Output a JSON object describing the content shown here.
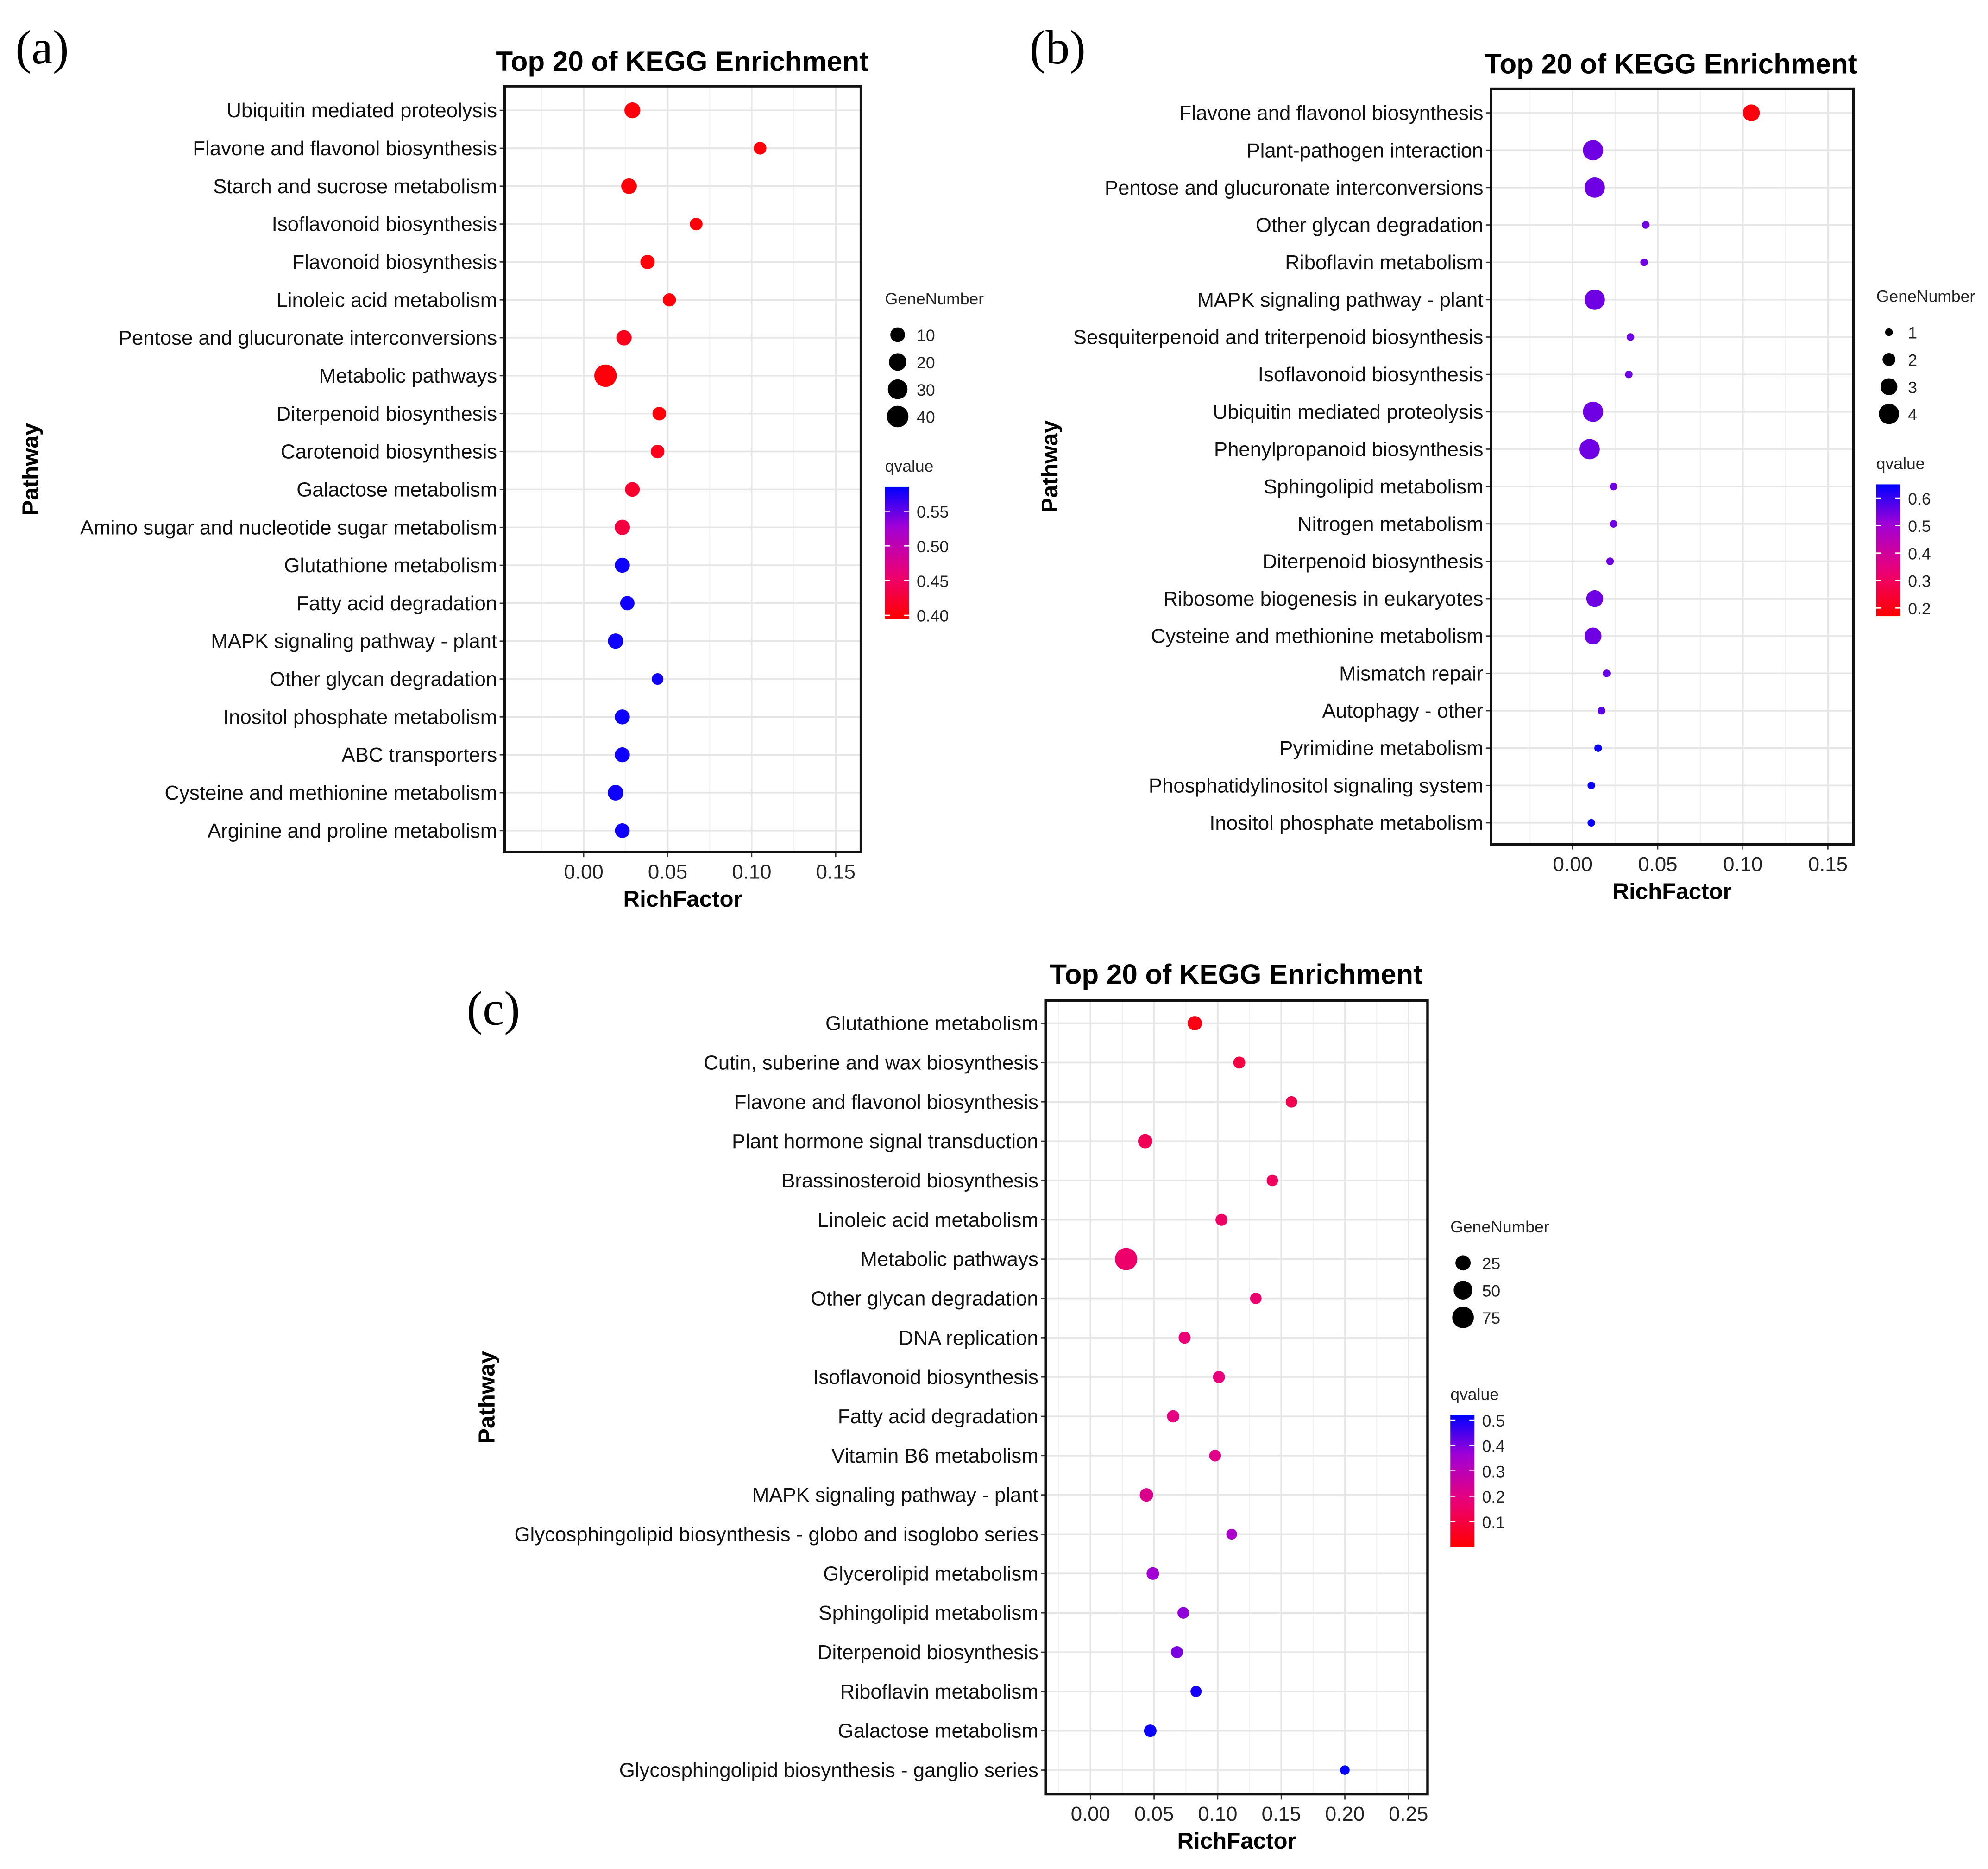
{
  "chart_data": [
    {
      "panel_label": "(a)",
      "type": "scatter",
      "title": "Top 20 of KEGG Enrichment",
      "xlabel": "RichFactor",
      "ylabel": "Pathway",
      "xlim": [
        -0.047,
        0.165
      ],
      "xticks": [
        "0.00",
        "0.05",
        "0.10",
        "0.15"
      ],
      "xtick_values": [
        0,
        0.05,
        0.1,
        0.15
      ],
      "size_legend": {
        "title": "GeneNumber",
        "values": [
          10,
          20,
          30,
          40
        ]
      },
      "color_legend": {
        "title": "qvalue",
        "ticks": [
          "0.55",
          "0.50",
          "0.45",
          "0.40"
        ],
        "tick_values": [
          0.55,
          0.5,
          0.45,
          0.4
        ],
        "range": [
          0.395,
          0.585
        ]
      },
      "pathways": [
        "Ubiquitin mediated proteolysis",
        "Flavone and flavonol biosynthesis",
        "Starch and sucrose metabolism",
        "Isoflavonoid biosynthesis",
        "Flavonoid biosynthesis",
        "Linoleic acid metabolism",
        "Pentose and glucuronate interconversions",
        "Metabolic pathways",
        "Diterpenoid biosynthesis",
        "Carotenoid biosynthesis",
        "Galactose metabolism",
        "Amino sugar and nucleotide sugar metabolism",
        "Glutathione metabolism",
        "Fatty acid degradation",
        "MAPK signaling pathway - plant",
        "Other glycan degradation",
        "Inositol phosphate metabolism",
        "ABC transporters",
        "Cysteine and methionine metabolism",
        "Arginine and proline metabolism"
      ],
      "rich_factor": [
        0.029,
        0.105,
        0.027,
        0.067,
        0.038,
        0.051,
        0.024,
        0.013,
        0.045,
        0.044,
        0.029,
        0.023,
        0.023,
        0.026,
        0.019,
        0.044,
        0.023,
        0.023,
        0.019,
        0.023
      ],
      "gene_number": [
        14,
        5,
        13,
        5,
        9,
        6,
        12,
        45,
        7,
        7,
        10,
        12,
        11,
        9,
        12,
        3,
        11,
        11,
        13,
        10
      ],
      "qvalue": [
        0.4,
        0.4,
        0.4,
        0.4,
        0.4,
        0.4,
        0.41,
        0.4,
        0.4,
        0.41,
        0.42,
        0.43,
        0.58,
        0.58,
        0.58,
        0.58,
        0.58,
        0.58,
        0.58,
        0.58
      ]
    },
    {
      "panel_label": "(b)",
      "type": "scatter",
      "title": "Top 20 of KEGG Enrichment",
      "xlabel": "RichFactor",
      "ylabel": "Pathway",
      "xlim": [
        -0.048,
        0.165
      ],
      "xticks": [
        "0.00",
        "0.05",
        "0.10",
        "0.15"
      ],
      "xtick_values": [
        0,
        0.05,
        0.1,
        0.15
      ],
      "size_legend": {
        "title": "GeneNumber",
        "values": [
          1,
          2,
          3,
          4
        ]
      },
      "color_legend": {
        "title": "qvalue",
        "ticks": [
          "0.6",
          "0.5",
          "0.4",
          "0.3",
          "0.2"
        ],
        "tick_values": [
          0.6,
          0.5,
          0.4,
          0.3,
          0.2
        ],
        "range": [
          0.17,
          0.65
        ]
      },
      "pathways": [
        "Flavone and flavonol biosynthesis",
        "Plant-pathogen interaction",
        "Pentose and glucuronate interconversions",
        "Other glycan degradation",
        "Riboflavin metabolism",
        "MAPK signaling pathway - plant",
        "Sesquiterpenoid and triterpenoid biosynthesis",
        "Isoflavonoid biosynthesis",
        "Ubiquitin mediated proteolysis",
        "Phenylpropanoid biosynthesis",
        "Sphingolipid metabolism",
        "Nitrogen metabolism",
        "Diterpenoid biosynthesis",
        "Ribosome biogenesis in eukaryotes",
        "Cysteine and methionine metabolism",
        "Mismatch repair",
        "Autophagy - other",
        "Pyrimidine metabolism",
        "Phosphatidylinositol signaling system",
        "Inositol phosphate metabolism"
      ],
      "rich_factor": [
        0.105,
        0.012,
        0.013,
        0.043,
        0.042,
        0.013,
        0.034,
        0.033,
        0.012,
        0.01,
        0.024,
        0.024,
        0.022,
        0.013,
        0.012,
        0.02,
        0.017,
        0.015,
        0.011,
        0.011
      ],
      "gene_number": [
        3,
        4,
        4,
        1,
        1,
        4,
        1,
        1,
        4,
        4,
        1,
        1,
        1,
        3,
        3,
        1,
        1,
        1,
        1,
        1
      ],
      "qvalue": [
        0.19,
        0.55,
        0.55,
        0.55,
        0.55,
        0.55,
        0.55,
        0.55,
        0.55,
        0.55,
        0.55,
        0.55,
        0.55,
        0.55,
        0.55,
        0.56,
        0.57,
        0.64,
        0.64,
        0.64
      ]
    },
    {
      "panel_label": "(c)",
      "type": "scatter",
      "title": "Top 20 of KEGG Enrichment",
      "xlabel": "RichFactor",
      "ylabel": "Pathway",
      "xlim": [
        -0.035,
        0.265
      ],
      "xticks": [
        "0.00",
        "0.05",
        "0.10",
        "0.15",
        "0.20",
        "0.25"
      ],
      "xtick_values": [
        0,
        0.05,
        0.1,
        0.15,
        0.2,
        0.25
      ],
      "size_legend": {
        "title": "GeneNumber",
        "values": [
          25,
          50,
          75
        ]
      },
      "color_legend": {
        "title": "qvalue",
        "ticks": [
          "0.5",
          "0.4",
          "0.3",
          "0.2",
          "0.1"
        ],
        "tick_values": [
          0.5,
          0.4,
          0.3,
          0.2,
          0.1
        ],
        "range": [
          0.0,
          0.52
        ]
      },
      "pathways": [
        "Glutathione metabolism",
        "Cutin, suberine and wax biosynthesis",
        "Flavone and flavonol biosynthesis",
        "Plant hormone signal transduction",
        "Brassinosteroid biosynthesis",
        "Linoleic acid metabolism",
        "Metabolic pathways",
        "Other glycan degradation",
        "DNA replication",
        "Isoflavonoid biosynthesis",
        "Fatty acid degradation",
        "Vitamin B6 metabolism",
        "MAPK signaling pathway - plant",
        "Glycosphingolipid biosynthesis - globo and isoglobo series",
        "Glycerolipid metabolism",
        "Sphingolipid metabolism",
        "Diterpenoid biosynthesis",
        "Riboflavin metabolism",
        "Galactose metabolism",
        "Glycosphingolipid biosynthesis - ganglio series"
      ],
      "rich_factor": [
        0.082,
        0.117,
        0.158,
        0.043,
        0.143,
        0.103,
        0.028,
        0.13,
        0.074,
        0.101,
        0.065,
        0.098,
        0.044,
        0.111,
        0.049,
        0.073,
        0.068,
        0.083,
        0.047,
        0.2
      ],
      "gene_number": [
        20,
        10,
        8,
        20,
        8,
        10,
        82,
        8,
        10,
        10,
        11,
        9,
        16,
        6,
        12,
        9,
        10,
        7,
        12,
        3
      ],
      "qvalue": [
        0.03,
        0.1,
        0.12,
        0.13,
        0.14,
        0.15,
        0.16,
        0.17,
        0.18,
        0.19,
        0.2,
        0.21,
        0.22,
        0.34,
        0.36,
        0.38,
        0.4,
        0.5,
        0.51,
        0.52
      ]
    }
  ]
}
